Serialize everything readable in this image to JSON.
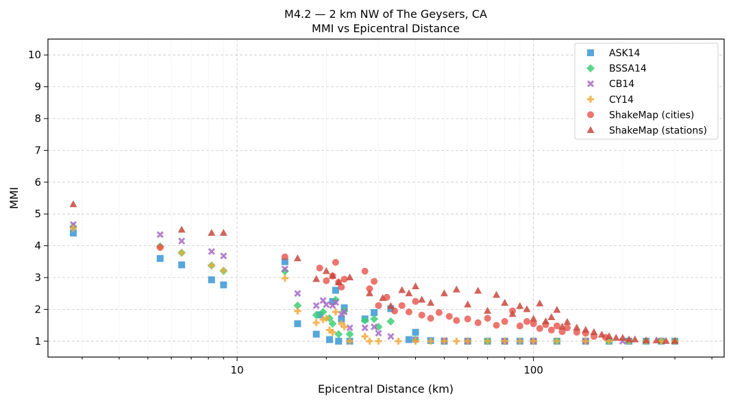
{
  "chart_data": {
    "type": "scatter",
    "title": "M4.2 — 2 km NW of The Geysers, CA",
    "subtitle": "MMI vs Epicentral Distance",
    "xlabel": "Epicentral Distance (km)",
    "ylabel": "MMI",
    "xscale": "log",
    "xlim": [
      2.3,
      440
    ],
    "ylim": [
      0.5,
      10.5
    ],
    "xticks": [
      10,
      100
    ],
    "xtick_labels": [
      "10",
      "100"
    ],
    "yticks": [
      1,
      2,
      3,
      4,
      5,
      6,
      7,
      8,
      9,
      10
    ],
    "ytick_labels": [
      "1",
      "2",
      "3",
      "4",
      "5",
      "6",
      "7",
      "8",
      "9",
      "10"
    ],
    "grid": true,
    "legend_position": "top-right",
    "series": [
      {
        "name": "ASK14",
        "marker": "square",
        "color": "#3a96d6",
        "x": [
          2.8,
          5.5,
          6.5,
          8.2,
          9.0,
          14.5,
          16.0,
          18.5,
          19.0,
          20.5,
          21.0,
          21.5,
          22.0,
          22.5,
          23.0,
          24.0,
          27.0,
          29.0,
          33.0,
          38.0,
          40.0,
          45.0,
          50.0,
          60.0,
          70.0,
          80.0,
          90.0,
          100.0,
          120.0,
          150.0,
          180.0,
          210.0,
          240.0,
          270.0,
          300.0
        ],
        "y": [
          4.4,
          3.6,
          3.4,
          2.93,
          2.77,
          3.5,
          1.55,
          1.22,
          1.83,
          1.05,
          2.25,
          2.6,
          1.0,
          1.7,
          2.05,
          1.0,
          1.7,
          1.9,
          2.02,
          1.05,
          1.28,
          1.02,
          1.0,
          1.0,
          1.0,
          1.0,
          1.0,
          1.0,
          1.0,
          1.0,
          1.0,
          1.0,
          1.0,
          1.0,
          1.0
        ]
      },
      {
        "name": "BSSA14",
        "marker": "diamond",
        "color": "#3ecf76",
        "x": [
          2.8,
          5.5,
          6.5,
          8.2,
          9.0,
          14.5,
          16.0,
          18.5,
          19.5,
          20.5,
          21.0,
          21.5,
          22.0,
          23.0,
          24.0,
          27.0,
          29.0,
          30.0,
          33.0,
          40.0,
          50.0,
          60.0,
          70.0,
          80.0,
          100.0,
          120.0,
          150.0,
          180.0,
          210.0,
          240.0,
          270.0,
          300.0
        ],
        "y": [
          4.6,
          3.98,
          3.78,
          3.38,
          3.21,
          3.2,
          2.12,
          1.82,
          1.92,
          1.72,
          1.55,
          2.3,
          1.22,
          1.95,
          1.22,
          1.65,
          1.7,
          1.45,
          1.62,
          1.05,
          1.0,
          1.0,
          1.0,
          1.0,
          1.0,
          1.0,
          1.0,
          1.0,
          1.0,
          1.0,
          1.0,
          1.0
        ]
      },
      {
        "name": "CB14",
        "marker": "x",
        "color": "#a86bc5",
        "x": [
          2.8,
          5.5,
          6.5,
          8.2,
          9.0,
          14.5,
          16.0,
          18.5,
          19.5,
          20.0,
          21.0,
          21.5,
          22.5,
          23.0,
          24.0,
          27.0,
          29.0,
          30.0,
          33.0,
          40.0,
          50.0,
          60.0,
          80.0,
          100.0,
          150.0,
          200.0
        ],
        "y": [
          4.67,
          4.35,
          4.15,
          3.82,
          3.68,
          3.27,
          2.5,
          2.12,
          2.28,
          2.15,
          2.12,
          2.22,
          1.85,
          1.92,
          1.42,
          1.42,
          1.45,
          1.25,
          1.15,
          1.05,
          1.02,
          1.0,
          1.0,
          1.0,
          1.0,
          1.0
        ]
      },
      {
        "name": "CY14",
        "marker": "plus",
        "color": "#f2a93b",
        "x": [
          2.8,
          5.5,
          6.5,
          8.2,
          9.0,
          14.5,
          16.0,
          18.5,
          19.5,
          20.0,
          20.5,
          21.0,
          21.5,
          22.5,
          23.0,
          24.0,
          27.0,
          28.0,
          30.0,
          35.0,
          40.0,
          45.0,
          50.0,
          55.0,
          60.0,
          70.0,
          80.0,
          90.0,
          100.0,
          120.0,
          150.0,
          180.0,
          210.0,
          240.0,
          270.0,
          300.0
        ],
        "y": [
          4.55,
          3.95,
          3.78,
          3.38,
          3.22,
          2.98,
          1.95,
          1.58,
          1.68,
          1.72,
          1.35,
          1.28,
          1.92,
          1.55,
          1.45,
          1.0,
          1.15,
          1.0,
          1.0,
          1.0,
          1.0,
          1.0,
          1.0,
          1.0,
          1.0,
          1.0,
          1.0,
          1.0,
          1.0,
          1.0,
          1.0,
          1.0,
          1.0,
          1.0,
          1.0,
          1.0
        ]
      },
      {
        "name": "ShakeMap (cities)",
        "marker": "circle",
        "color": "#e8534a",
        "x": [
          5.5,
          14.5,
          19.0,
          20.0,
          21.0,
          21.5,
          22.0,
          22.5,
          23.0,
          27.0,
          28.0,
          29.0,
          30.0,
          32.0,
          34.0,
          36.0,
          38.0,
          40.0,
          42.0,
          45.0,
          48.0,
          52.0,
          55.0,
          60.0,
          65.0,
          70.0,
          75.0,
          80.0,
          85.0,
          90.0,
          95.0,
          100.0,
          105.0,
          110.0,
          115.0,
          120.0,
          125.0,
          130.0,
          140.0,
          150.0,
          160.0,
          175.0
        ],
        "y": [
          3.95,
          3.65,
          3.3,
          2.9,
          3.05,
          3.48,
          2.85,
          2.7,
          2.95,
          3.2,
          2.65,
          2.88,
          2.12,
          2.38,
          1.95,
          2.12,
          1.92,
          2.25,
          1.82,
          1.72,
          1.9,
          1.78,
          1.65,
          1.7,
          1.58,
          1.72,
          1.5,
          1.62,
          1.95,
          1.48,
          1.62,
          1.55,
          1.4,
          1.52,
          1.35,
          1.48,
          1.3,
          1.42,
          1.28,
          1.25,
          1.15,
          1.12
        ]
      },
      {
        "name": "ShakeMap (stations)",
        "marker": "triangle",
        "color": "#c9483d",
        "x": [
          2.8,
          6.5,
          8.2,
          9.0,
          16.0,
          18.5,
          20.0,
          21.0,
          22.0,
          24.0,
          28.0,
          31.0,
          33.0,
          36.0,
          38.0,
          40.0,
          42.0,
          45.0,
          50.0,
          55.0,
          60.0,
          65.0,
          70.0,
          75.0,
          80.0,
          85.0,
          90.0,
          95.0,
          100.0,
          105.0,
          110.0,
          115.0,
          120.0,
          125.0,
          130.0,
          140.0,
          150.0,
          160.0,
          170.0,
          180.0,
          190.0,
          200.0,
          210.0,
          220.0,
          240.0,
          260.0,
          280.0,
          300.0
        ],
        "y": [
          5.3,
          4.5,
          4.4,
          4.4,
          3.6,
          2.95,
          3.2,
          3.05,
          2.85,
          3.0,
          2.5,
          2.35,
          2.1,
          2.6,
          2.5,
          2.72,
          2.3,
          2.2,
          2.5,
          2.62,
          2.15,
          2.58,
          1.95,
          2.45,
          2.2,
          1.85,
          2.1,
          2.0,
          1.7,
          2.18,
          1.62,
          1.75,
          1.98,
          1.45,
          1.6,
          1.42,
          1.35,
          1.28,
          1.2,
          1.15,
          1.1,
          1.1,
          1.05,
          1.05,
          1.02,
          1.02,
          1.0,
          1.0
        ]
      }
    ]
  }
}
